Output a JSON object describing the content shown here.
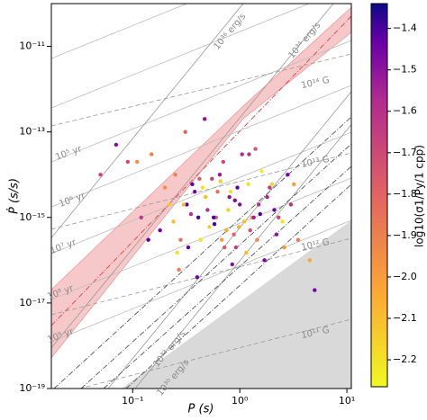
{
  "chart_data": {
    "type": "scatter",
    "xlabel": "P (s)",
    "ylabel": "Ṗ (s/s)",
    "colorbar_label": "log10(σ1/Py/1 cpp)",
    "colormap": "plasma",
    "xscale": "log",
    "yscale": "log",
    "xlim": [
      0.0174,
      11
    ],
    "ylim": [
      1e-19,
      1e-10
    ],
    "xticks": [
      {
        "value": 0.1,
        "label": "10⁻¹"
      },
      {
        "value": 1,
        "label": "10⁰"
      },
      {
        "value": 10,
        "label": "10¹"
      }
    ],
    "yticks": [
      {
        "value": 1e-19,
        "label": "10⁻¹⁹"
      },
      {
        "value": 1e-17,
        "label": "10⁻¹⁷"
      },
      {
        "value": 1e-15,
        "label": "10⁻¹⁵"
      },
      {
        "value": 1e-13,
        "label": "10⁻¹³"
      },
      {
        "value": 1e-11,
        "label": "10⁻¹¹"
      }
    ],
    "clim": [
      -2.265,
      -1.34
    ],
    "cticks": [
      {
        "value": -2.2,
        "label": "−2.2"
      },
      {
        "value": -2.1,
        "label": "−2.1"
      },
      {
        "value": -2.0,
        "label": "−2.0"
      },
      {
        "value": -1.9,
        "label": "−1.9"
      },
      {
        "value": -1.8,
        "label": "−1.8"
      },
      {
        "value": -1.7,
        "label": "−1.7"
      },
      {
        "value": -1.6,
        "label": "−1.6"
      },
      {
        "value": -1.5,
        "label": "−1.5"
      },
      {
        "value": -1.4,
        "label": "−1.4"
      }
    ],
    "annotations": [
      "10³⁶ erg/s",
      "10³⁴ erg/s",
      "10³² erg/s",
      "10³⁰ erg/s",
      "10¹⁴ G",
      "10¹³ G",
      "10¹² G",
      "10¹¹ G",
      "10⁵ yr",
      "10⁶ yr",
      "10⁷ yr",
      "10⁸ yr",
      "10⁹ yr"
    ],
    "x": [
      0.32,
      0.45,
      0.6,
      0.8,
      1.1,
      1.5,
      0.25,
      0.38,
      0.52,
      0.7,
      0.95,
      1.3,
      1.8,
      2.5,
      0.28,
      0.41,
      0.55,
      0.75,
      1.0,
      1.4,
      2.0,
      3.0,
      0.2,
      0.33,
      0.48,
      0.65,
      0.88,
      1.2,
      1.7,
      2.3,
      0.15,
      0.22,
      0.36,
      0.5,
      0.68,
      0.9,
      1.25,
      1.6,
      2.2,
      3.5,
      0.12,
      0.18,
      0.3,
      0.42,
      0.58,
      0.78,
      1.05,
      1.45,
      2.8,
      4.5,
      0.09,
      0.14,
      0.26,
      0.35,
      0.62,
      0.85,
      1.15,
      1.9,
      2.6,
      5.0,
      0.43,
      0.57,
      0.72,
      0.98,
      1.35,
      0.27,
      0.4,
      0.66,
      0.92,
      1.55,
      0.31,
      0.47,
      0.82,
      1.22,
      2.1,
      0.11,
      0.24,
      0.05,
      0.07,
      3.2
    ],
    "y": [
      2e-15,
      5e-15,
      1e-15,
      3e-15,
      8e-16,
      2e-15,
      1e-14,
      4e-15,
      6e-16,
      2e-14,
      5e-15,
      1e-15,
      3e-15,
      8e-16,
      3e-16,
      1e-15,
      8e-15,
      5e-16,
      2e-15,
      4e-14,
      6e-15,
      2e-15,
      5e-15,
      2e-16,
      3e-15,
      1e-14,
      4e-16,
      6e-15,
      1e-16,
      1e-15,
      3e-14,
      2e-15,
      6e-15,
      1.5e-15,
      3e-16,
      2.5e-15,
      5e-16,
      1.2e-14,
      4e-16,
      3e-16,
      1e-15,
      5e-16,
      2e-15,
      8e-15,
      7e-16,
      1.5e-15,
      3e-14,
      3e-16,
      1e-14,
      1e-16,
      2e-14,
      3e-16,
      1.5e-16,
      1.2e-15,
      4e-15,
      8e-17,
      1.5e-16,
      5e-15,
      2e-16,
      2e-17,
      3e-16,
      1e-15,
      2e-16,
      6e-16,
      1e-15,
      6e-17,
      4e-17,
      7e-15,
      2e-16,
      1.2e-15,
      1e-13,
      2e-13,
      4e-15,
      3e-14,
      1.5e-15,
      2e-14,
      8e-16,
      1e-14,
      5e-14,
      6e-15
    ],
    "c": [
      -1.4,
      -2.2,
      -1.8,
      -1.5,
      -2.1,
      -1.6,
      -1.9,
      -1.45,
      -2.15,
      -1.7,
      -1.42,
      -2.0,
      -1.55,
      -2.2,
      -1.85,
      -1.4,
      -1.65,
      -2.05,
      -1.48,
      -1.75,
      -2.18,
      -1.6,
      -1.95,
      -1.43,
      -2.1,
      -1.52,
      -1.8,
      -2.2,
      -1.45,
      -1.68,
      -1.9,
      -2.12,
      -1.41,
      -1.58,
      -2.0,
      -1.47,
      -1.72,
      -2.22,
      -1.5,
      -1.88,
      -1.62,
      -1.44,
      -2.08,
      -1.78,
      -1.4,
      -2.16,
      -1.56,
      -1.92,
      -1.46,
      -2.02,
      -1.7,
      -1.42,
      -2.2,
      -1.6,
      -1.84,
      -1.49,
      -2.1,
      -1.64,
      -1.98,
      -1.45,
      -2.2,
      -1.4,
      -1.76,
      -2.06,
      -1.53,
      -1.9,
      -1.44,
      -2.14,
      -1.66,
      -1.41,
      -1.8,
      -1.5,
      -2.2,
      -1.6,
      -1.43,
      -1.95,
      -2.1,
      -1.7,
      -1.48,
      -2.0
    ]
  }
}
